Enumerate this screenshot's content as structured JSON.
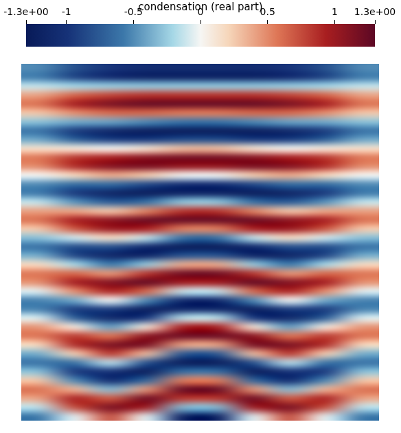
{
  "chart_data": {
    "type": "heatmap",
    "tick_labels": false,
    "colorbar": {
      "label": "condensation (real part)",
      "range": [
        -1.3,
        1.3
      ],
      "ticks": [
        {
          "value": -1.3,
          "label": "-1.3e+00"
        },
        -1,
        -0.5,
        0,
        0.5,
        1,
        {
          "value": 1.3,
          "label": "1.3e+00"
        }
      ]
    },
    "cells": [
      [
        -0.51,
        -0.81,
        -0.98,
        -1.07,
        -1.07,
        -1.07,
        -1.07,
        -0.98,
        -0.81,
        -0.51
      ],
      [
        -0.55,
        -0.87,
        -1.06,
        -1.15,
        -1.15,
        -1.15,
        -1.15,
        -1.06,
        -0.87,
        -0.55
      ],
      [
        -0.13,
        -0.21,
        -0.25,
        -0.27,
        -0.27,
        -0.27,
        -0.27,
        -0.25,
        -0.21,
        -0.13
      ],
      [
        0.4,
        0.64,
        0.77,
        0.84,
        0.84,
        0.84,
        0.84,
        0.77,
        0.64,
        0.4
      ],
      [
        0.59,
        0.94,
        1.14,
        1.24,
        1.24,
        1.24,
        1.24,
        1.14,
        0.94,
        0.59
      ],
      [
        0.27,
        0.48,
        0.62,
        0.63,
        0.56,
        0.56,
        0.63,
        0.62,
        0.48,
        0.27
      ],
      [
        -0.29,
        -0.38,
        -0.41,
        -0.51,
        -0.6,
        -0.6,
        -0.51,
        -0.41,
        -0.38,
        -0.29
      ],
      [
        -0.6,
        -0.93,
        -1.11,
        -1.22,
        -1.24,
        -1.24,
        -1.22,
        -1.11,
        -0.93,
        -0.6
      ],
      [
        -0.39,
        -0.71,
        -0.91,
        -0.93,
        -0.82,
        -0.82,
        -0.93,
        -0.91,
        -0.71,
        -0.39
      ],
      [
        0.15,
        0.1,
        0.02,
        0.13,
        0.31,
        0.31,
        0.13,
        0.02,
        0.1,
        0.15
      ],
      [
        0.56,
        0.83,
        0.94,
        1.09,
        1.17,
        1.17,
        1.09,
        0.94,
        0.83,
        0.56
      ],
      [
        0.49,
        0.87,
        1.1,
        1.14,
        1.02,
        1.02,
        1.14,
        1.1,
        0.87,
        0.49
      ],
      [
        -0.01,
        0.19,
        0.38,
        0.25,
        -0.01,
        -0.01,
        0.25,
        0.38,
        0.19,
        -0.01
      ],
      [
        -0.5,
        -0.64,
        -0.64,
        -0.84,
        -1.04,
        -1.04,
        -0.84,
        -0.64,
        -0.64,
        -0.5
      ],
      [
        -0.56,
        -0.94,
        -1.15,
        -1.24,
        -1.16,
        -1.16,
        -1.24,
        -1.15,
        -0.94,
        -0.56
      ],
      [
        -0.13,
        -0.47,
        -0.74,
        -0.62,
        -0.27,
        -0.27,
        -0.62,
        -0.74,
        -0.47,
        -0.13
      ],
      [
        0.41,
        0.39,
        0.26,
        0.52,
        0.85,
        0.85,
        0.52,
        0.26,
        0.39,
        0.41
      ],
      [
        0.59,
        0.93,
        1.05,
        1.22,
        1.24,
        1.24,
        1.22,
        1.05,
        0.93,
        0.59
      ],
      [
        0.26,
        0.7,
        1.01,
        0.93,
        0.54,
        0.54,
        0.93,
        1.01,
        0.7,
        0.26
      ],
      [
        -0.3,
        -0.1,
        0.17,
        -0.13,
        -0.62,
        -0.62,
        -0.13,
        0.17,
        -0.1,
        -0.3
      ],
      [
        -0.6,
        -0.82,
        -0.8,
        -1.08,
        -1.25,
        -1.25,
        -1.08,
        -0.8,
        -0.82,
        -0.6
      ],
      [
        -0.37,
        -0.87,
        -1.14,
        -1.14,
        -0.78,
        -0.78,
        -1.14,
        -1.14,
        -0.87,
        -0.37
      ],
      [
        0.18,
        -0.2,
        -0.58,
        -0.26,
        0.38,
        0.38,
        -0.26,
        -0.58,
        -0.2,
        0.18
      ],
      [
        0.57,
        0.63,
        0.44,
        0.83,
        1.2,
        1.2,
        0.83,
        0.44,
        0.63,
        0.57
      ],
      [
        0.47,
        0.95,
        1.11,
        1.25,
        0.97,
        0.97,
        1.25,
        1.11,
        0.95,
        0.47
      ],
      [
        -0.06,
        0.48,
        0.91,
        0.63,
        -0.12,
        -0.12,
        0.63,
        0.91,
        0.48,
        -0.06
      ],
      [
        -0.53,
        -0.38,
        0,
        -0.5,
        -1.1,
        -1.1,
        -0.5,
        0,
        -0.38,
        -0.53
      ],
      [
        -0.53,
        -0.93,
        -0.91,
        -1.22,
        -1.11,
        -1.11,
        -1.22,
        -0.91,
        -0.93,
        -0.53
      ],
      [
        -0.07,
        -0.72,
        -1.11,
        -0.95,
        -0.15,
        -0.15,
        -0.95,
        -1.11,
        -0.72,
        -0.07
      ],
      [
        0.45,
        0.08,
        -0.44,
        0.1,
        0.94,
        0.94,
        0.1,
        -0.44,
        0.08,
        0.45
      ],
      [
        0.58,
        0.81,
        0.57,
        1.07,
        1.21,
        1.21,
        1.07,
        0.57,
        0.81,
        0.58
      ],
      [
        0.19,
        0.88,
        1.14,
        1.16,
        0.4,
        0.4,
        1.16,
        1.14,
        0.88,
        0.19
      ],
      [
        -0.37,
        0.23,
        0.82,
        0.3,
        -0.76,
        -0.76,
        0.3,
        0.82,
        0.23,
        -0.37
      ],
      [
        -0.6,
        -0.61,
        -0.14,
        -0.8,
        -1.25,
        -1.25,
        -0.8,
        -0.14,
        -0.61,
        -0.6
      ],
      [
        -0.3,
        -0.95,
        -0.99,
        -1.25,
        -0.63,
        -0.63,
        -1.25,
        -0.99,
        -0.95,
        -0.3
      ],
      [
        0.27,
        -0.51,
        -1.07,
        -0.67,
        0.55,
        0.55,
        -0.67,
        -1.07,
        -0.51,
        0.27
      ],
      [
        0.59,
        0.34,
        -0.33,
        0.45,
        1.24,
        1.24,
        0.45,
        -0.33,
        0.34,
        0.59
      ],
      [
        0.4,
        0.92,
        0.67,
        1.21,
        0.83,
        0.83,
        1.21,
        0.67,
        0.92,
        0.4
      ],
      [
        -0.15,
        0.74,
        1.15,
        0.98,
        -0.32,
        -0.32,
        0.98,
        1.15,
        0.74,
        -0.15
      ],
      [
        -0.57,
        -0.04,
        0.74,
        -0.05,
        -1.18,
        -1.18,
        -0.05,
        0.74,
        -0.04,
        -0.57
      ]
    ]
  }
}
